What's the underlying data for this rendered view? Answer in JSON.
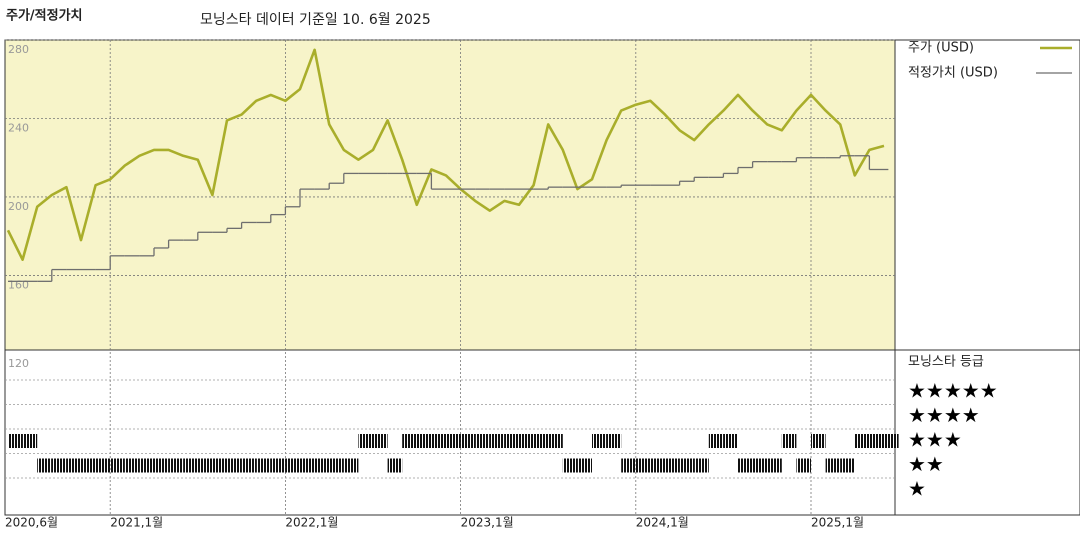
{
  "chart_data": [
    {
      "type": "line",
      "title": "주가/적정가치",
      "subtitle": "모닝스타 데이터 기준일 10. 6월 2025",
      "x": [
        "2020-06",
        "2020-07",
        "2020-08",
        "2020-09",
        "2020-10",
        "2020-11",
        "2020-12",
        "2021-01",
        "2021-02",
        "2021-03",
        "2021-04",
        "2021-05",
        "2021-06",
        "2021-07",
        "2021-08",
        "2021-09",
        "2021-10",
        "2021-11",
        "2021-12",
        "2022-01",
        "2022-02",
        "2022-03",
        "2022-04",
        "2022-05",
        "2022-06",
        "2022-07",
        "2022-08",
        "2022-09",
        "2022-10",
        "2022-11",
        "2022-12",
        "2023-01",
        "2023-02",
        "2023-03",
        "2023-04",
        "2023-05",
        "2023-06",
        "2023-07",
        "2023-08",
        "2023-09",
        "2023-10",
        "2023-11",
        "2023-12",
        "2024-01",
        "2024-02",
        "2024-03",
        "2024-04",
        "2024-05",
        "2024-06",
        "2024-07",
        "2024-08",
        "2024-09",
        "2024-10",
        "2024-11",
        "2024-12",
        "2025-01",
        "2025-02",
        "2025-03",
        "2025-04",
        "2025-05",
        "2025-06"
      ],
      "series": [
        {
          "name": "주가 (USD)",
          "color": "#a9ae2b",
          "step": false,
          "values": [
            183,
            168,
            195,
            201,
            205,
            178,
            206,
            209,
            216,
            221,
            224,
            224,
            221,
            219,
            201,
            239,
            242,
            249,
            252,
            249,
            255,
            275,
            237,
            224,
            219,
            224,
            239,
            219,
            196,
            214,
            211,
            204,
            198,
            193,
            198,
            196,
            206,
            237,
            224,
            204,
            209,
            229,
            244,
            247,
            249,
            242,
            234,
            229,
            237,
            244,
            252,
            244,
            237,
            234,
            244,
            252,
            244,
            237,
            211,
            224,
            226
          ]
        },
        {
          "name": "적정가치 (USD)",
          "color": "#6e6e6e",
          "step": true,
          "values": [
            157,
            157,
            157,
            163,
            163,
            163,
            163,
            170,
            170,
            170,
            174,
            178,
            178,
            182,
            182,
            184,
            187,
            187,
            191,
            195,
            204,
            204,
            207,
            212,
            212,
            212,
            212,
            212,
            212,
            204,
            204,
            204,
            204,
            204,
            204,
            204,
            204,
            205,
            205,
            205,
            205,
            205,
            206,
            206,
            206,
            206,
            208,
            210,
            210,
            212,
            215,
            218,
            218,
            218,
            220,
            220,
            220,
            221,
            221,
            214,
            214
          ]
        }
      ],
      "ylim": [
        122,
        280
      ],
      "yticks": [
        120,
        160,
        200,
        240,
        280
      ],
      "xticks": [
        {
          "value": "2020-06",
          "label": "2020,6월"
        },
        {
          "value": "2021-01",
          "label": "2021,1월"
        },
        {
          "value": "2022-01",
          "label": "2022,1월"
        },
        {
          "value": "2023-01",
          "label": "2023,1월"
        },
        {
          "value": "2024-01",
          "label": "2024,1월"
        },
        {
          "value": "2025-01",
          "label": "2025,1월"
        }
      ],
      "grid": true,
      "background": "#f7f4c9"
    },
    {
      "type": "rating",
      "title": "모닝스타 등급",
      "color": "#111111",
      "levels": [
        {
          "value": 5,
          "label": "★★★★★"
        },
        {
          "value": 4,
          "label": "★★★★"
        },
        {
          "value": 3,
          "label": "★★★"
        },
        {
          "value": 2,
          "label": "★★"
        },
        {
          "value": 1,
          "label": "★"
        }
      ],
      "values": [
        3,
        3,
        2,
        2,
        2,
        2,
        2,
        2,
        2,
        2,
        2,
        2,
        2,
        2,
        2,
        2,
        2,
        2,
        2,
        2,
        2,
        2,
        2,
        2,
        3,
        3,
        2,
        3,
        3,
        3,
        3,
        3,
        3,
        3,
        3,
        3,
        3,
        3,
        2,
        2,
        3,
        3,
        2,
        2,
        2,
        2,
        2,
        2,
        3,
        3,
        2,
        2,
        2,
        3,
        2,
        3,
        2,
        2,
        3,
        3,
        3
      ]
    }
  ]
}
